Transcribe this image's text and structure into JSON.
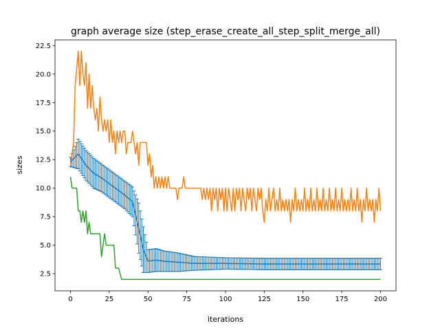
{
  "chart_data": {
    "type": "line",
    "title": "graph average size (step_erase_create_all_step_split_merge_all)",
    "xlabel": "iterations",
    "ylabel": "sizes",
    "xlim": [
      -10,
      210
    ],
    "ylim": [
      1.0,
      23.0
    ],
    "xticks": [
      0,
      25,
      50,
      75,
      100,
      125,
      150,
      175,
      200
    ],
    "xtick_labels": [
      "0",
      "25",
      "50",
      "75",
      "100",
      "125",
      "150",
      "175",
      "200"
    ],
    "yticks": [
      2.5,
      5.0,
      7.5,
      10.0,
      12.5,
      15.0,
      17.5,
      20.0,
      22.5
    ],
    "ytick_labels": [
      "2.5",
      "5.0",
      "7.5",
      "10.0",
      "12.5",
      "15.0",
      "17.5",
      "20.0",
      "22.5"
    ],
    "grid": false,
    "series": [
      {
        "kind": "errorbar",
        "color": "#1f77b4",
        "points": [
          [
            0,
            12.3,
            0.4
          ],
          [
            5,
            13.0,
            1.3
          ],
          [
            10,
            12.0,
            1.3
          ],
          [
            15,
            11.3,
            1.3
          ],
          [
            20,
            10.9,
            1.2
          ],
          [
            25,
            10.4,
            1.2
          ],
          [
            30,
            9.9,
            1.2
          ],
          [
            35,
            9.4,
            1.2
          ],
          [
            40,
            8.8,
            1.3
          ],
          [
            44,
            6.5,
            2.2
          ],
          [
            47,
            4.6,
            2.0
          ],
          [
            50,
            3.6,
            1.0
          ],
          [
            55,
            3.7,
            1.0
          ],
          [
            60,
            3.6,
            0.9
          ],
          [
            70,
            3.5,
            0.8
          ],
          [
            80,
            3.4,
            0.6
          ],
          [
            100,
            3.4,
            0.5
          ],
          [
            125,
            3.35,
            0.5
          ],
          [
            150,
            3.35,
            0.5
          ],
          [
            175,
            3.35,
            0.5
          ],
          [
            200,
            3.35,
            0.5
          ]
        ]
      },
      {
        "kind": "line",
        "color": "#ff7f0e",
        "points": [
          [
            0,
            12
          ],
          [
            2,
            14
          ],
          [
            3,
            19
          ],
          [
            5,
            22
          ],
          [
            6,
            19
          ],
          [
            7,
            22
          ],
          [
            8,
            20
          ],
          [
            9,
            19
          ],
          [
            10,
            21
          ],
          [
            11,
            17
          ],
          [
            12,
            20
          ],
          [
            13,
            17
          ],
          [
            14,
            19
          ],
          [
            15,
            17
          ],
          [
            16,
            16
          ],
          [
            17,
            17
          ],
          [
            18,
            15
          ],
          [
            19,
            18
          ],
          [
            20,
            16
          ],
          [
            21,
            15
          ],
          [
            22,
            16
          ],
          [
            23,
            15
          ],
          [
            24,
            16
          ],
          [
            25,
            14
          ],
          [
            26,
            16
          ],
          [
            27,
            14
          ],
          [
            28,
            15
          ],
          [
            29,
            13
          ],
          [
            30,
            15
          ],
          [
            31,
            14
          ],
          [
            32,
            15
          ],
          [
            33,
            14
          ],
          [
            34,
            15
          ],
          [
            35,
            15
          ],
          [
            36,
            13
          ],
          [
            37,
            14
          ],
          [
            38,
            14
          ],
          [
            39,
            14
          ],
          [
            40,
            15
          ],
          [
            41,
            14
          ],
          [
            42,
            13
          ],
          [
            43,
            14
          ],
          [
            44,
            12
          ],
          [
            45,
            14
          ],
          [
            47,
            14
          ],
          [
            49,
            14
          ],
          [
            50,
            12
          ],
          [
            51,
            13
          ],
          [
            52,
            11
          ],
          [
            53,
            12
          ],
          [
            54,
            10
          ],
          [
            55,
            11
          ],
          [
            56,
            10
          ],
          [
            57,
            11
          ],
          [
            58,
            10
          ],
          [
            59,
            11
          ],
          [
            60,
            10
          ],
          [
            61,
            11
          ],
          [
            62,
            10
          ],
          [
            63,
            11
          ],
          [
            64,
            10
          ],
          [
            65,
            10
          ],
          [
            66,
            10
          ],
          [
            67,
            10
          ],
          [
            68,
            10
          ],
          [
            69,
            9
          ],
          [
            70,
            10
          ],
          [
            72,
            10
          ],
          [
            73,
            11
          ],
          [
            74,
            10
          ],
          [
            75,
            10
          ],
          [
            84,
            10
          ],
          [
            85,
            9
          ],
          [
            86,
            10
          ],
          [
            87,
            9
          ],
          [
            88,
            10
          ],
          [
            89,
            9
          ],
          [
            90,
            10
          ],
          [
            91,
            8
          ],
          [
            92,
            10
          ],
          [
            93,
            9
          ],
          [
            94,
            10
          ],
          [
            95,
            8
          ],
          [
            96,
            10
          ],
          [
            97,
            9
          ],
          [
            98,
            10
          ],
          [
            99,
            8
          ],
          [
            100,
            10
          ],
          [
            101,
            8
          ],
          [
            102,
            10
          ],
          [
            103,
            9
          ],
          [
            104,
            8
          ],
          [
            105,
            10
          ],
          [
            106,
            8
          ],
          [
            107,
            10
          ],
          [
            108,
            9
          ],
          [
            109,
            10
          ],
          [
            110,
            8
          ],
          [
            111,
            10
          ],
          [
            112,
            9
          ],
          [
            113,
            8
          ],
          [
            114,
            10
          ],
          [
            115,
            9
          ],
          [
            116,
            10
          ],
          [
            117,
            8
          ],
          [
            118,
            10
          ],
          [
            119,
            9
          ],
          [
            120,
            8
          ],
          [
            121,
            10
          ],
          [
            122,
            9
          ],
          [
            123,
            10
          ],
          [
            124,
            8
          ],
          [
            125,
            7
          ],
          [
            126,
            9
          ],
          [
            127,
            8
          ],
          [
            128,
            10
          ],
          [
            129,
            8
          ],
          [
            130,
            9
          ],
          [
            131,
            10
          ],
          [
            132,
            8
          ],
          [
            133,
            9
          ],
          [
            134,
            8
          ],
          [
            135,
            10
          ],
          [
            136,
            8
          ],
          [
            137,
            9
          ],
          [
            138,
            8
          ],
          [
            139,
            9
          ],
          [
            140,
            8
          ],
          [
            141,
            9
          ],
          [
            142,
            7
          ],
          [
            143,
            9
          ],
          [
            144,
            8
          ],
          [
            145,
            10
          ],
          [
            146,
            8
          ],
          [
            147,
            9
          ],
          [
            148,
            8
          ],
          [
            149,
            9
          ],
          [
            150,
            8
          ],
          [
            151,
            10
          ],
          [
            152,
            8
          ],
          [
            153,
            9
          ],
          [
            154,
            8
          ],
          [
            155,
            10
          ],
          [
            156,
            8
          ],
          [
            157,
            9
          ],
          [
            158,
            8
          ],
          [
            159,
            10
          ],
          [
            160,
            8
          ],
          [
            161,
            9
          ],
          [
            162,
            8
          ],
          [
            163,
            10
          ],
          [
            164,
            8
          ],
          [
            165,
            9
          ],
          [
            166,
            8
          ],
          [
            167,
            10
          ],
          [
            168,
            8
          ],
          [
            169,
            9
          ],
          [
            170,
            8
          ],
          [
            171,
            10
          ],
          [
            172,
            8
          ],
          [
            173,
            9
          ],
          [
            174,
            8
          ],
          [
            175,
            10
          ],
          [
            176,
            8
          ],
          [
            177,
            9
          ],
          [
            178,
            8
          ],
          [
            179,
            9
          ],
          [
            180,
            8
          ],
          [
            181,
            10
          ],
          [
            182,
            8
          ],
          [
            183,
            9
          ],
          [
            184,
            8
          ],
          [
            185,
            10
          ],
          [
            186,
            8
          ],
          [
            187,
            9
          ],
          [
            188,
            7
          ],
          [
            189,
            9
          ],
          [
            190,
            8
          ],
          [
            191,
            10
          ],
          [
            192,
            8
          ],
          [
            193,
            9
          ],
          [
            194,
            8
          ],
          [
            195,
            9
          ],
          [
            196,
            7
          ],
          [
            197,
            9
          ],
          [
            198,
            8
          ],
          [
            199,
            10
          ],
          [
            200,
            8
          ]
        ]
      },
      {
        "kind": "line",
        "color": "#2ca02c",
        "points": [
          [
            0,
            11
          ],
          [
            1,
            10
          ],
          [
            4,
            10
          ],
          [
            5,
            8
          ],
          [
            6,
            8
          ],
          [
            7,
            7
          ],
          [
            8,
            8
          ],
          [
            9,
            7
          ],
          [
            10,
            8
          ],
          [
            11,
            6
          ],
          [
            12,
            7
          ],
          [
            13,
            6
          ],
          [
            19,
            6
          ],
          [
            20,
            4
          ],
          [
            21,
            5
          ],
          [
            22,
            6
          ],
          [
            23,
            5
          ],
          [
            28,
            5
          ],
          [
            29,
            3
          ],
          [
            31,
            3
          ],
          [
            33,
            2
          ],
          [
            200,
            2
          ]
        ]
      }
    ]
  }
}
